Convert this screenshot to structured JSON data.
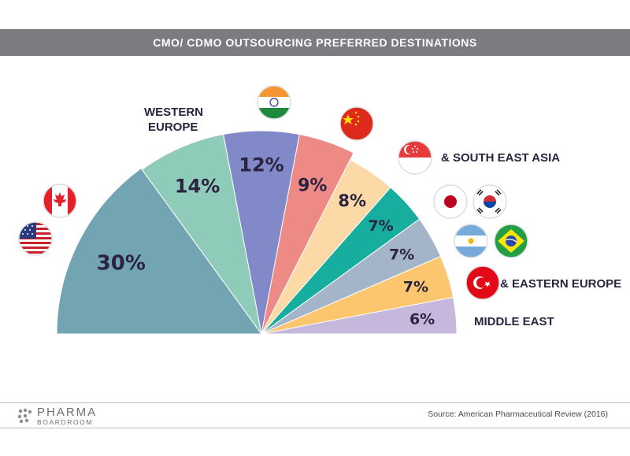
{
  "title": "CMO/ CDMO OUTSOURCING PREFERRED DESTINATIONS",
  "source": "Source: American Pharmaceutical Review (2016)",
  "logo": {
    "line1": "PHARMA",
    "line2": "BOARDROOM"
  },
  "chart_data": {
    "type": "pie",
    "variant": "half-donut-radial",
    "slices": [
      {
        "value": 30,
        "label": "30%",
        "color": "#72a4b2",
        "flags": [
          "usa-flag-icon",
          "canada-flag-icon"
        ]
      },
      {
        "value": 14,
        "label": "14%",
        "color": "#8fcbb9",
        "region": "WESTERN EUROPE"
      },
      {
        "value": 12,
        "label": "12%",
        "color": "#8289c8",
        "flags": [
          "india-flag-icon"
        ]
      },
      {
        "value": 9,
        "label": "9%",
        "color": "#ee8a86",
        "flags": [
          "china-flag-icon"
        ]
      },
      {
        "value": 8,
        "label": "8%",
        "color": "#fcd9a6",
        "flags": [
          "singapore-flag-icon"
        ],
        "region": "& SOUTH EAST ASIA"
      },
      {
        "value": 7,
        "label": "7%",
        "color": "#17aea0",
        "flags": [
          "japan-flag-icon",
          "south-korea-flag-icon"
        ]
      },
      {
        "value": 7,
        "label": "7%",
        "color": "#a5b5c9",
        "flags": [
          "argentina-flag-icon",
          "brazil-flag-icon"
        ]
      },
      {
        "value": 7,
        "label": "7%",
        "color": "#fbc66d",
        "flags": [
          "turkey-flag-icon"
        ],
        "region": "& EASTERN EUROPE"
      },
      {
        "value": 6,
        "label": "6%",
        "color": "#c6b8dc",
        "region": "MIDDLE EAST"
      }
    ]
  }
}
